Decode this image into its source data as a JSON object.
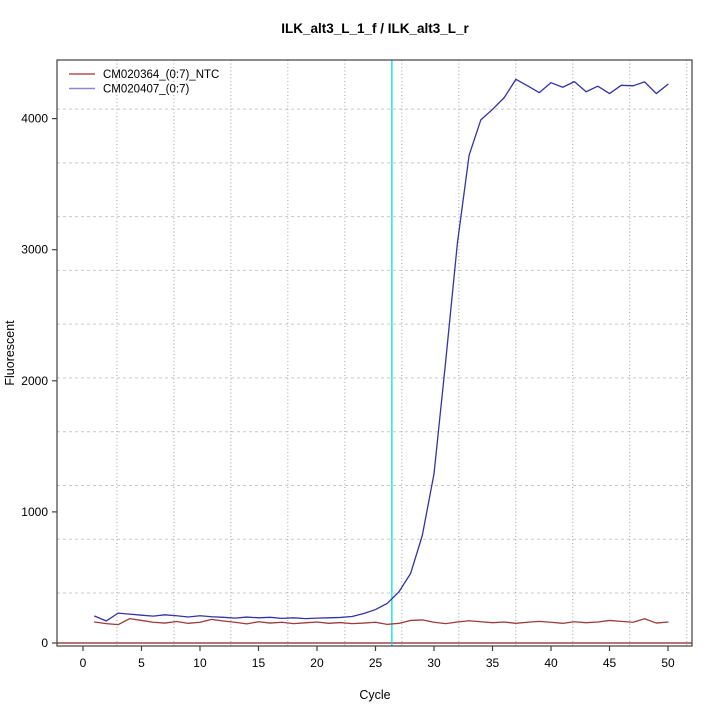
{
  "chart_data": {
    "type": "line",
    "title": "ILK_alt3_L_1_f / ILK_alt3_L_r",
    "xlabel": "Cycle",
    "ylabel": "Fluorescent",
    "x_ticks": [
      0,
      5,
      10,
      15,
      20,
      25,
      30,
      35,
      40,
      45,
      50
    ],
    "y_ticks": [
      0,
      1000,
      2000,
      3000,
      4000
    ],
    "x_range": [
      -2.22,
      52.05
    ],
    "y_range": [
      -22.9,
      4447
    ],
    "grid": {
      "x_values": [
        2.9,
        7.77,
        12.64,
        17.51,
        22.38,
        27.25,
        32.12,
        36.99,
        41.86,
        46.73,
        51.6
      ],
      "y_values": [
        381,
        791,
        1201,
        1611,
        2022,
        2432,
        2842,
        3252,
        3662,
        4072
      ],
      "h_color": "#C9C9C9",
      "v_color": "#A0A0A0"
    },
    "x": [
      1,
      2,
      3,
      4,
      5,
      6,
      7,
      8,
      9,
      10,
      11,
      12,
      13,
      14,
      15,
      16,
      17,
      18,
      19,
      20,
      21,
      22,
      23,
      24,
      25,
      26,
      27,
      28,
      29,
      30,
      31,
      32,
      33,
      34,
      35,
      36,
      37,
      38,
      39,
      40,
      41,
      42,
      43,
      44,
      45,
      46,
      47,
      48,
      49,
      50
    ],
    "series": [
      {
        "name": "CM020364_(0:7)_NTC",
        "color": "#9E3A3A",
        "legend_color": "#B05050",
        "values": [
          160,
          148,
          140,
          186,
          172,
          158,
          152,
          164,
          150,
          158,
          180,
          168,
          158,
          146,
          162,
          152,
          158,
          148,
          154,
          160,
          150,
          156,
          148,
          152,
          158,
          142,
          150,
          172,
          176,
          158,
          148,
          160,
          170,
          162,
          155,
          160,
          150,
          158,
          165,
          158,
          150,
          162,
          155,
          160,
          172,
          165,
          158,
          185,
          152,
          160
        ]
      },
      {
        "name": "CM020407_(0:7)",
        "color": "#3333AA",
        "legend_color": "#8888CC",
        "values": [
          205,
          168,
          228,
          220,
          212,
          205,
          215,
          208,
          198,
          208,
          200,
          196,
          190,
          198,
          192,
          196,
          188,
          192,
          186,
          190,
          192,
          195,
          202,
          225,
          255,
          302,
          390,
          530,
          820,
          1290,
          2150,
          3050,
          3720,
          3990,
          4070,
          4160,
          4300,
          4250,
          4198,
          4274,
          4239,
          4282,
          4205,
          4247,
          4191,
          4254,
          4250,
          4280,
          4191,
          4262
        ]
      }
    ],
    "legend": {
      "position": "topleft",
      "entries": [
        "CM020364_(0:7)_NTC",
        "CM020407_(0:7)"
      ]
    },
    "threshold_cycle_line": {
      "x": 26.4,
      "color": "#00E0E6"
    },
    "baseline_line": {
      "y": 0,
      "color": "#8B2323"
    },
    "frame_color": "#404040",
    "text_color": "#000000",
    "background": "#FFFFFF"
  }
}
